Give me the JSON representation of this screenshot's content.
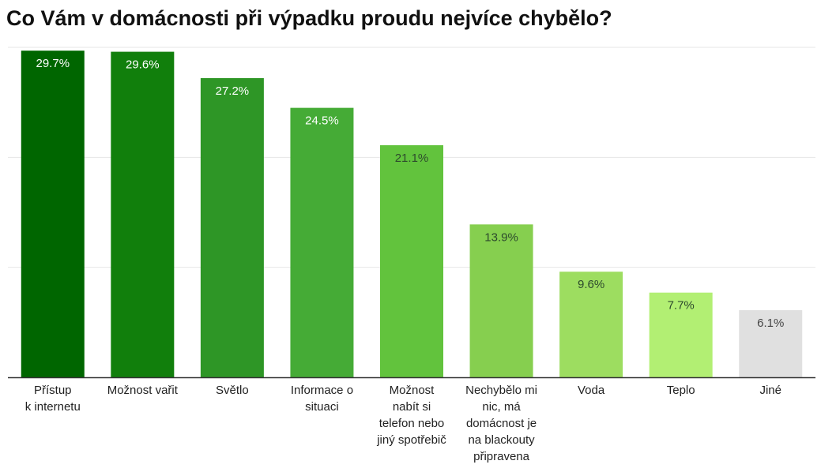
{
  "chart_data": {
    "type": "bar",
    "title": "Co Vám v domácnosti při výpadku proudu nejvíce chybělo?",
    "categories": [
      "Přístup k internetu",
      "Možnost vařit",
      "Světlo",
      "Informace o situaci",
      "Možnost nabít si telefon nebo jiný spotřebič",
      "Nechybělo mi nic, má domácnost je na blackouty připravena",
      "Voda",
      "Teplo",
      "Jiné"
    ],
    "category_lines": [
      [
        "Přístup",
        "k internetu"
      ],
      [
        "Možnost vařit"
      ],
      [
        "Světlo"
      ],
      [
        "Informace o",
        "situaci"
      ],
      [
        "Možnost",
        "nabít si",
        "telefon nebo",
        "jiný spotřebič"
      ],
      [
        "Nechybělo mi",
        "nic, má",
        "domácnost je",
        "na blackouty",
        "připravena"
      ],
      [
        "Voda"
      ],
      [
        "Teplo"
      ],
      [
        "Jiné"
      ]
    ],
    "values": [
      29.7,
      29.6,
      27.2,
      24.5,
      21.1,
      13.9,
      9.6,
      7.7,
      6.1
    ],
    "value_labels": [
      "29.7%",
      "29.6%",
      "27.2%",
      "24.5%",
      "21.1%",
      "13.9%",
      "9.6%",
      "7.7%",
      "6.1%"
    ],
    "colors": [
      "#006600",
      "#117f0c",
      "#2e9626",
      "#45ab36",
      "#62c33d",
      "#86cf4f",
      "#9ddd60",
      "#b2ef73",
      "#e0e0e0"
    ],
    "label_colors": [
      "#ffffff",
      "#ffffff",
      "#ffffff",
      "#ffffff",
      "#2d4a2d",
      "#2d4a2d",
      "#2d4a2d",
      "#2d4a2d",
      "#444444"
    ],
    "ylim": [
      0,
      30
    ],
    "gridlines": [
      0,
      10,
      20,
      30
    ],
    "xlabel": "",
    "ylabel": ""
  }
}
